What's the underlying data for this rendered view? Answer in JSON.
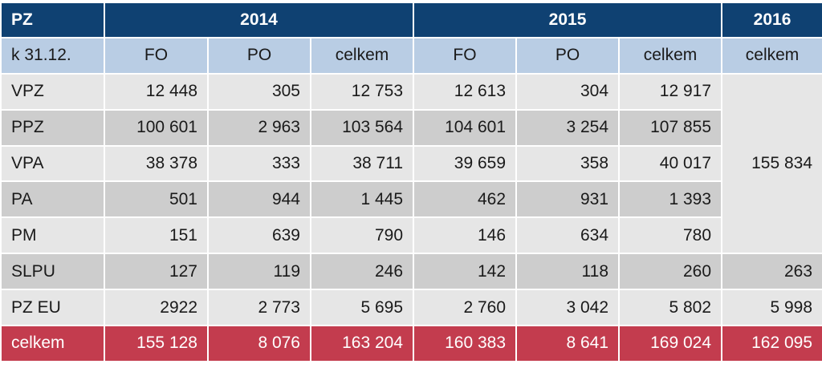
{
  "chart_data": {
    "type": "table",
    "corner": "PZ",
    "years": [
      "2014",
      "2015",
      "2016"
    ],
    "row_label_header": "k 31.12.",
    "sub_headers": [
      "FO",
      "PO",
      "celkem",
      "FO",
      "PO",
      "celkem",
      "celkem"
    ],
    "rows": [
      {
        "label": "VPZ",
        "values": [
          "12 448",
          "305",
          "12 753",
          "12 613",
          "304",
          "12 917"
        ]
      },
      {
        "label": "PPZ",
        "values": [
          "100 601",
          "2 963",
          "103 564",
          "104 601",
          "3 254",
          "107 855"
        ]
      },
      {
        "label": "VPA",
        "values": [
          "38 378",
          "333",
          "38 711",
          "39 659",
          "358",
          "40 017"
        ]
      },
      {
        "label": "PA",
        "values": [
          "501",
          "944",
          "1 445",
          "462",
          "931",
          "1 393"
        ]
      },
      {
        "label": "PM",
        "values": [
          "151",
          "639",
          "790",
          "146",
          "634",
          "780"
        ]
      },
      {
        "label": "SLPU",
        "values": [
          "127",
          "119",
          "246",
          "142",
          "118",
          "260",
          "263"
        ]
      },
      {
        "label": "PZ EU",
        "values": [
          "2922",
          "2 773",
          "5 695",
          "2 760",
          "3 042",
          "5 802",
          "5 998"
        ]
      }
    ],
    "merged_2016_value": "155 834",
    "total": {
      "label": "celkem",
      "values": [
        "155 128",
        "8 076",
        "163 204",
        "160 383",
        "8 641",
        "169 024",
        "162 095"
      ]
    }
  },
  "colors": {
    "header": "#0f4172",
    "subheader": "#b9cde4",
    "row_light": "#e6e6e6",
    "row_dark": "#cdcdcd",
    "total": "#c33c4e"
  }
}
